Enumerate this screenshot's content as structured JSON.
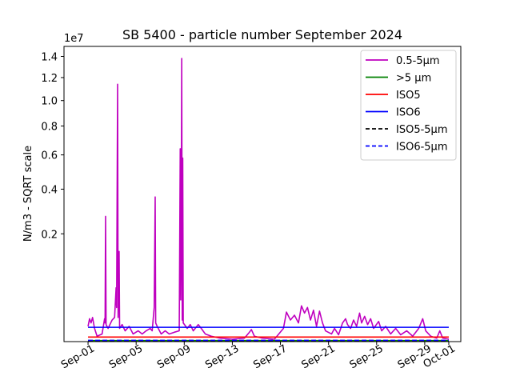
{
  "chart_data": {
    "type": "line",
    "title": "SB 5400 - particle number September 2024",
    "ylabel": "N/m3 - SQRT scale",
    "y_offset_text": "1e7",
    "y_scale": "sqrt",
    "ylim": [
      0,
      15000000
    ],
    "xlim": [
      "2024-08-30",
      "2024-10-02"
    ],
    "grid": false,
    "legend_position": "upper right",
    "y_ticks": [
      {
        "value": 2000000,
        "label": "0.2"
      },
      {
        "value": 4000000,
        "label": "0.4"
      },
      {
        "value": 6000000,
        "label": "0.6"
      },
      {
        "value": 8000000,
        "label": "0.8"
      },
      {
        "value": 10000000,
        "label": "1.0"
      },
      {
        "value": 12000000,
        "label": "1.2"
      },
      {
        "value": 14000000,
        "label": "1.4"
      }
    ],
    "x_ticks": [
      {
        "date": "2024-09-01",
        "label": "Sep-01"
      },
      {
        "date": "2024-09-05",
        "label": "Sep-05"
      },
      {
        "date": "2024-09-09",
        "label": "Sep-09"
      },
      {
        "date": "2024-09-13",
        "label": "Sep-13"
      },
      {
        "date": "2024-09-17",
        "label": "Sep-17"
      },
      {
        "date": "2024-09-21",
        "label": "Sep-21"
      },
      {
        "date": "2024-09-25",
        "label": "Sep-25"
      },
      {
        "date": "2024-09-29",
        "label": "Sep-29"
      },
      {
        "date": "2024-10-01",
        "label": "Oct-01"
      }
    ],
    "series": [
      {
        "name": "0.5-5µm",
        "color": "#bf00bf",
        "dash": "solid",
        "points": [
          [
            "2024-09-01T00:00",
            40000
          ],
          [
            "2024-09-01T03:00",
            90000
          ],
          [
            "2024-09-01T06:00",
            60000
          ],
          [
            "2024-09-01T09:00",
            100000
          ],
          [
            "2024-09-01T13:00",
            30000
          ],
          [
            "2024-09-01T18:00",
            5000
          ],
          [
            "2024-09-02T04:00",
            10000
          ],
          [
            "2024-09-02T09:00",
            90000
          ],
          [
            "2024-09-02T10:00",
            60000
          ],
          [
            "2024-09-02T11:00",
            2700000
          ],
          [
            "2024-09-02T12:00",
            50000
          ],
          [
            "2024-09-02T16:00",
            30000
          ],
          [
            "2024-09-03T00:00",
            80000
          ],
          [
            "2024-09-03T05:00",
            100000
          ],
          [
            "2024-09-03T08:00",
            500000
          ],
          [
            "2024-09-03T09:00",
            200000
          ],
          [
            "2024-09-03T11:00",
            11400000
          ],
          [
            "2024-09-03T12:00",
            100000
          ],
          [
            "2024-09-03T14:00",
            1400000
          ],
          [
            "2024-09-03T15:00",
            30000
          ],
          [
            "2024-09-03T20:00",
            50000
          ],
          [
            "2024-09-04T02:00",
            20000
          ],
          [
            "2024-09-04T10:00",
            40000
          ],
          [
            "2024-09-04T18:00",
            10000
          ],
          [
            "2024-09-05T04:00",
            20000
          ],
          [
            "2024-09-05T12:00",
            10000
          ],
          [
            "2024-09-05T20:00",
            20000
          ],
          [
            "2024-09-06T04:00",
            30000
          ],
          [
            "2024-09-06T08:00",
            20000
          ],
          [
            "2024-09-06T12:00",
            200000
          ],
          [
            "2024-09-06T14:00",
            3600000
          ],
          [
            "2024-09-06T15:00",
            60000
          ],
          [
            "2024-09-06T18:00",
            40000
          ],
          [
            "2024-09-07T02:00",
            10000
          ],
          [
            "2024-09-07T10:00",
            20000
          ],
          [
            "2024-09-07T18:00",
            10000
          ],
          [
            "2024-09-08T04:00",
            15000
          ],
          [
            "2024-09-08T14:00",
            20000
          ],
          [
            "2024-09-08T16:00",
            6400000
          ],
          [
            "2024-09-08T17:00",
            300000
          ],
          [
            "2024-09-08T18:00",
            2200000
          ],
          [
            "2024-09-08T19:00",
            13800000
          ],
          [
            "2024-09-08T20:00",
            80000
          ],
          [
            "2024-09-08T21:00",
            5800000
          ],
          [
            "2024-09-08T22:00",
            60000
          ],
          [
            "2024-09-09T06:00",
            30000
          ],
          [
            "2024-09-09T12:00",
            50000
          ],
          [
            "2024-09-09T18:00",
            20000
          ],
          [
            "2024-09-10T04:00",
            50000
          ],
          [
            "2024-09-10T10:00",
            30000
          ],
          [
            "2024-09-10T18:00",
            10000
          ],
          [
            "2024-09-11T06:00",
            5000
          ],
          [
            "2024-09-12T00:00",
            2000
          ],
          [
            "2024-09-13T00:00",
            1000
          ],
          [
            "2024-09-14T00:00",
            2000
          ],
          [
            "2024-09-14T10:00",
            15000
          ],
          [
            "2024-09-14T14:00",
            25000
          ],
          [
            "2024-09-14T20:00",
            5000
          ],
          [
            "2024-09-15T12:00",
            2000
          ],
          [
            "2024-09-16T12:00",
            1000
          ],
          [
            "2024-09-17T06:00",
            30000
          ],
          [
            "2024-09-17T12:00",
            150000
          ],
          [
            "2024-09-17T20:00",
            80000
          ],
          [
            "2024-09-18T04:00",
            120000
          ],
          [
            "2024-09-18T12:00",
            60000
          ],
          [
            "2024-09-18T18:00",
            220000
          ],
          [
            "2024-09-19T00:00",
            140000
          ],
          [
            "2024-09-19T06:00",
            200000
          ],
          [
            "2024-09-19T12:00",
            80000
          ],
          [
            "2024-09-19T18:00",
            170000
          ],
          [
            "2024-09-20T00:00",
            40000
          ],
          [
            "2024-09-20T06:00",
            160000
          ],
          [
            "2024-09-20T12:00",
            60000
          ],
          [
            "2024-09-20T18:00",
            20000
          ],
          [
            "2024-09-21T06:00",
            10000
          ],
          [
            "2024-09-21T12:00",
            30000
          ],
          [
            "2024-09-21T20:00",
            8000
          ],
          [
            "2024-09-22T04:00",
            60000
          ],
          [
            "2024-09-22T10:00",
            90000
          ],
          [
            "2024-09-22T14:00",
            50000
          ],
          [
            "2024-09-22T20:00",
            30000
          ],
          [
            "2024-09-23T02:00",
            80000
          ],
          [
            "2024-09-23T08:00",
            40000
          ],
          [
            "2024-09-23T14:00",
            140000
          ],
          [
            "2024-09-23T18:00",
            60000
          ],
          [
            "2024-09-24T00:00",
            110000
          ],
          [
            "2024-09-24T06:00",
            50000
          ],
          [
            "2024-09-24T12:00",
            90000
          ],
          [
            "2024-09-24T18:00",
            30000
          ],
          [
            "2024-09-25T04:00",
            70000
          ],
          [
            "2024-09-25T10:00",
            20000
          ],
          [
            "2024-09-25T18:00",
            40000
          ],
          [
            "2024-09-26T04:00",
            10000
          ],
          [
            "2024-09-26T14:00",
            30000
          ],
          [
            "2024-09-27T00:00",
            8000
          ],
          [
            "2024-09-27T12:00",
            20000
          ],
          [
            "2024-09-28T00:00",
            5000
          ],
          [
            "2024-09-28T12:00",
            30000
          ],
          [
            "2024-09-28T20:00",
            90000
          ],
          [
            "2024-09-29T02:00",
            20000
          ],
          [
            "2024-09-29T12:00",
            5000
          ],
          [
            "2024-09-30T00:00",
            2000
          ],
          [
            "2024-09-30T06:00",
            20000
          ],
          [
            "2024-09-30T12:00",
            2000
          ],
          [
            "2024-10-01T00:00",
            1000
          ]
        ]
      },
      {
        "name": ">5 µm",
        "color": "#008000",
        "dash": "solid",
        "points": [
          [
            "2024-09-01T00:00",
            200
          ],
          [
            "2024-10-01T00:00",
            200
          ]
        ]
      },
      {
        "name": "ISO5",
        "color": "#ff0000",
        "dash": "solid",
        "points": [
          [
            "2024-09-01T00:00",
            3520
          ],
          [
            "2024-10-01T00:00",
            3520
          ]
        ]
      },
      {
        "name": "ISO6",
        "color": "#0000ff",
        "dash": "solid",
        "points": [
          [
            "2024-09-01T00:00",
            35200
          ],
          [
            "2024-10-01T00:00",
            35200
          ]
        ]
      },
      {
        "name": "ISO5-5µm",
        "color": "#000000",
        "dash": "dashed",
        "points": [
          [
            "2024-09-01T00:00",
            29
          ],
          [
            "2024-10-01T00:00",
            29
          ]
        ]
      },
      {
        "name": "ISO6-5µm",
        "color": "#0000ff",
        "dash": "dashed",
        "points": [
          [
            "2024-09-01T00:00",
            293
          ],
          [
            "2024-10-01T00:00",
            293
          ]
        ]
      }
    ]
  }
}
